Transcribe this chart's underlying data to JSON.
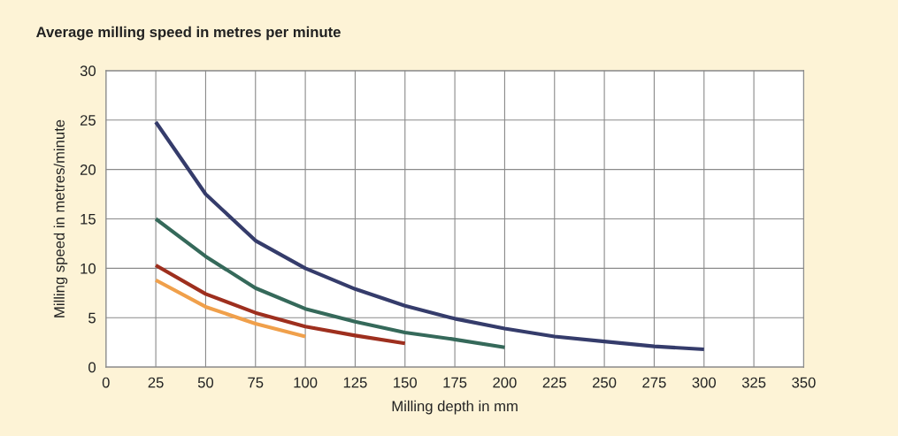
{
  "chart_data": {
    "type": "line",
    "title": "Average milling speed in metres per minute",
    "xlabel": "Milling depth in mm",
    "ylabel": "Milling speed in metres/minute",
    "xlim": [
      0,
      350
    ],
    "xticks": [
      0,
      25,
      50,
      75,
      100,
      125,
      150,
      175,
      200,
      225,
      250,
      275,
      300,
      325,
      350
    ],
    "ylim": [
      0,
      30
    ],
    "yticks": [
      0,
      5,
      10,
      15,
      20,
      25,
      30
    ],
    "grid": true,
    "marker": "none",
    "line_style": "solid",
    "series": [
      {
        "color": "#353c6b",
        "x": [
          25,
          50,
          75,
          100,
          125,
          150,
          175,
          200,
          225,
          250,
          275,
          300
        ],
        "values": [
          24.8,
          17.5,
          12.8,
          10.0,
          7.9,
          6.2,
          4.9,
          3.9,
          3.1,
          2.6,
          2.1,
          1.8
        ]
      },
      {
        "color": "#35695a",
        "x": [
          25,
          50,
          75,
          100,
          125,
          150,
          175,
          200
        ],
        "values": [
          15.0,
          11.2,
          8.0,
          5.9,
          4.6,
          3.5,
          2.8,
          2.0
        ]
      },
      {
        "color": "#9e2f1e",
        "x": [
          25,
          50,
          75,
          100,
          125,
          150
        ],
        "values": [
          10.3,
          7.4,
          5.5,
          4.1,
          3.2,
          2.4
        ]
      },
      {
        "color": "#f0a04b",
        "x": [
          25,
          50,
          75,
          100
        ],
        "values": [
          8.8,
          6.1,
          4.4,
          3.1
        ]
      }
    ]
  }
}
